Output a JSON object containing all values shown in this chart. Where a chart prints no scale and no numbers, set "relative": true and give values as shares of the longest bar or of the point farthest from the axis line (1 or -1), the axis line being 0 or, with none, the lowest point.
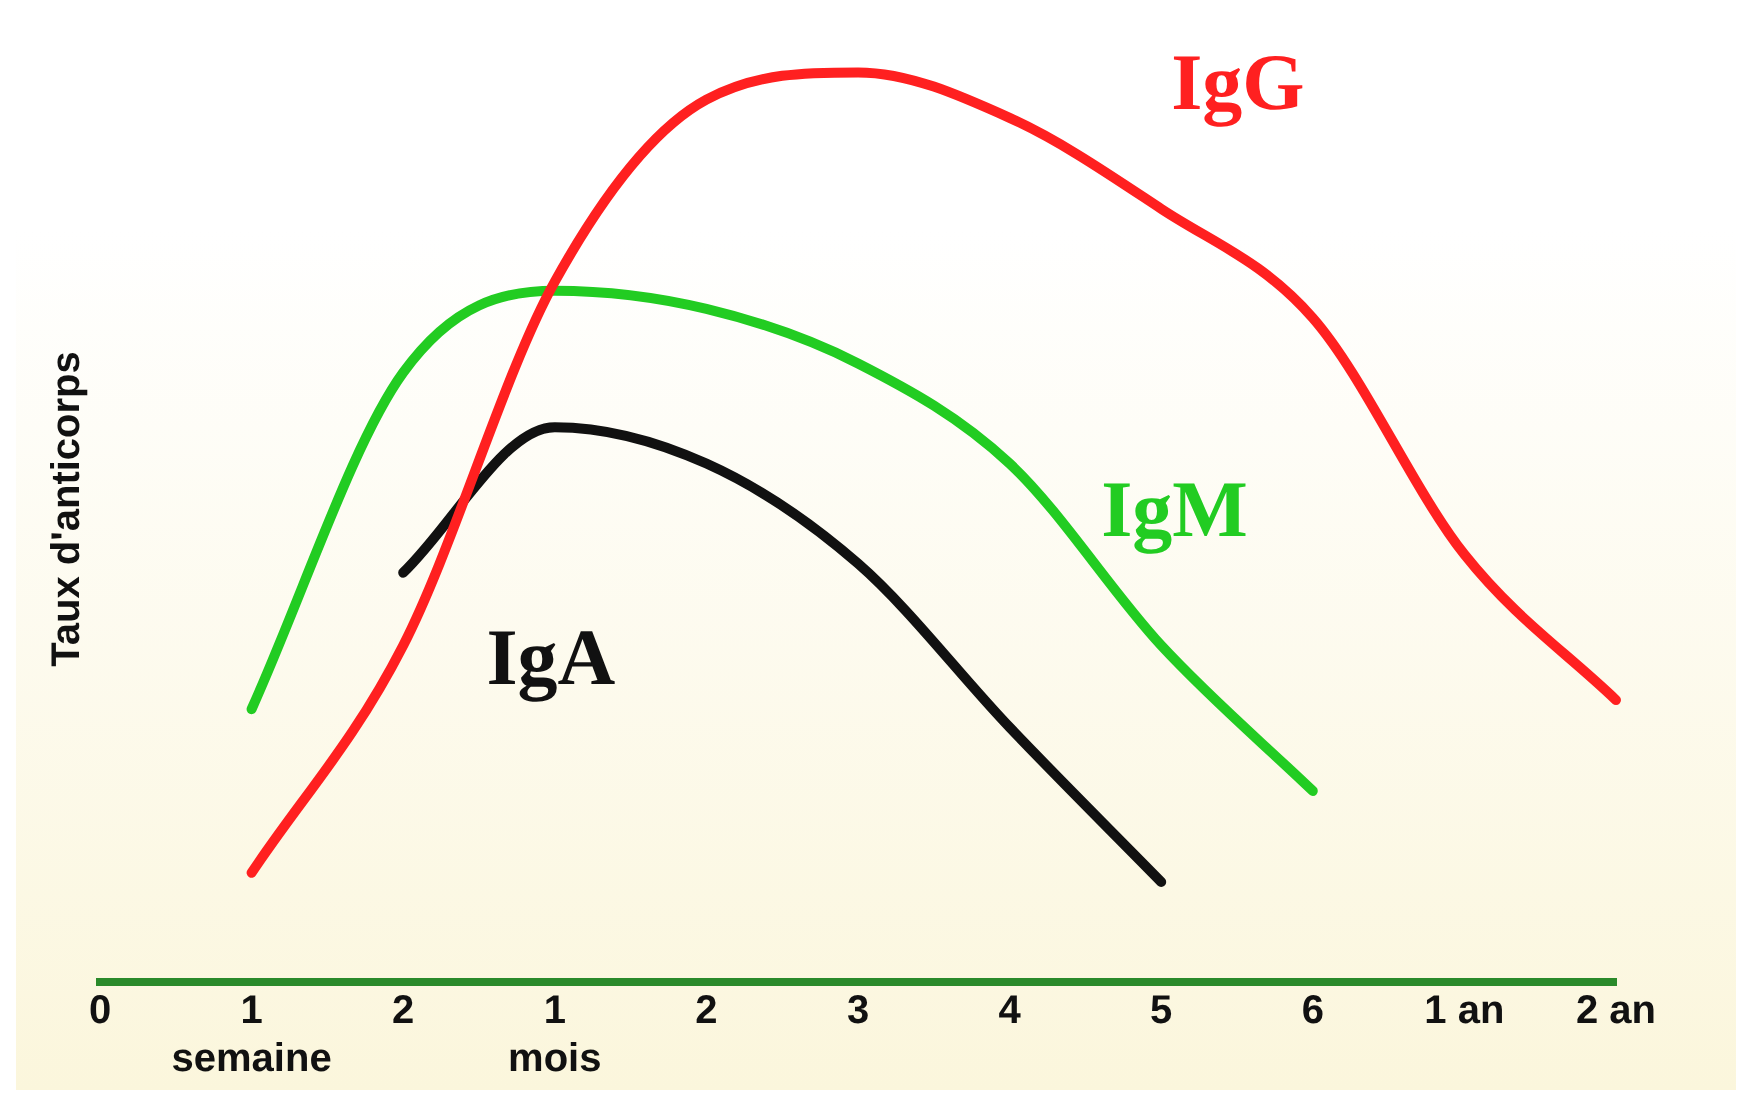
{
  "chart_data": {
    "type": "line",
    "relative": true,
    "ylabel": "Taux d'anticorps",
    "categories": [
      "0",
      "1\nsemaine",
      "2",
      "1\nmois",
      "2",
      "3",
      "4",
      "5",
      "6",
      "1 an",
      "2 an"
    ],
    "grid": false,
    "legend": false,
    "marker": "none",
    "line_style": "solid",
    "series": [
      {
        "name": "IgG",
        "color": "#ff2020",
        "values": [
          null,
          0.12,
          0.37,
          0.77,
          0.97,
          1.0,
          0.95,
          0.85,
          0.73,
          0.47,
          0.31
        ]
      },
      {
        "name": "IgM",
        "color": "#22cc22",
        "values": [
          null,
          0.3,
          0.67,
          0.76,
          0.74,
          0.68,
          0.57,
          0.37,
          0.21,
          null,
          null
        ]
      },
      {
        "name": "IgA",
        "color": "#111111",
        "values": [
          null,
          null,
          0.45,
          0.61,
          0.57,
          0.46,
          0.28,
          0.11,
          null,
          null,
          null
        ]
      }
    ]
  }
}
